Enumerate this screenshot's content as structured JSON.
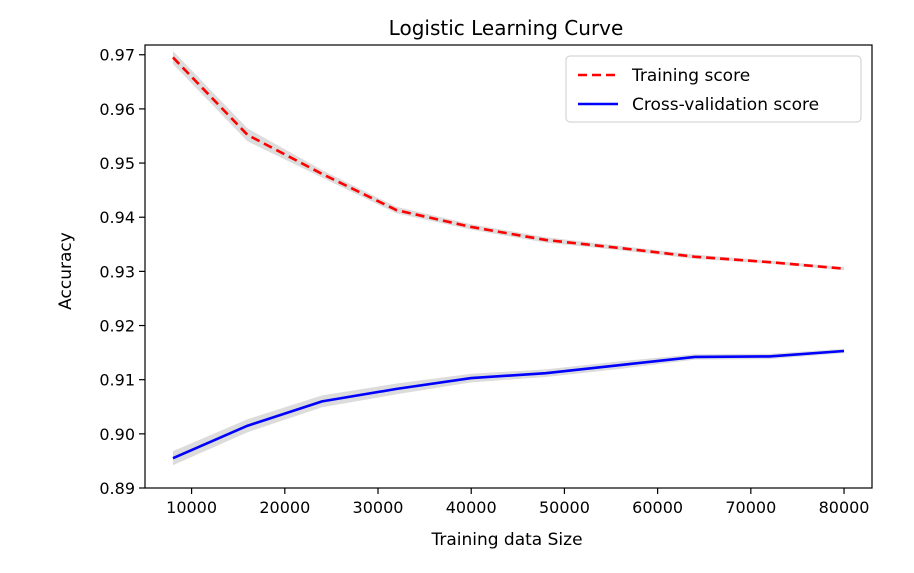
{
  "chart_data": {
    "type": "line",
    "title": "Logistic Learning Curve",
    "xlabel": "Training data Size",
    "ylabel": "Accuracy",
    "xlim": [
      5000,
      83000
    ],
    "ylim": [
      0.89,
      0.9718
    ],
    "x_ticks": [
      10000,
      20000,
      30000,
      40000,
      50000,
      60000,
      70000,
      80000
    ],
    "x_tick_labels": [
      "10000",
      "20000",
      "30000",
      "40000",
      "50000",
      "60000",
      "70000",
      "80000"
    ],
    "y_ticks": [
      0.89,
      0.9,
      0.91,
      0.92,
      0.93,
      0.94,
      0.95,
      0.96,
      0.97
    ],
    "y_tick_labels": [
      "0.89",
      "0.90",
      "0.91",
      "0.92",
      "0.93",
      "0.94",
      "0.95",
      "0.96",
      "0.97"
    ],
    "x": [
      8000,
      16000,
      24000,
      32000,
      40000,
      48000,
      56000,
      64000,
      72000,
      80000
    ],
    "series": [
      {
        "name": "Training score",
        "color": "#ff0000",
        "style": "dashed",
        "values": [
          0.9695,
          0.9552,
          0.948,
          0.9413,
          0.9382,
          0.9358,
          0.9343,
          0.9327,
          0.9317,
          0.9305
        ],
        "band": [
          0.0012,
          0.0012,
          0.0007,
          0.0006,
          0.0005,
          0.0005,
          0.0004,
          0.0004,
          0.0003,
          0.0003
        ]
      },
      {
        "name": "Cross-validation score",
        "color": "#0000ff",
        "style": "solid",
        "values": [
          0.8955,
          0.9015,
          0.906,
          0.9083,
          0.9103,
          0.9112,
          0.9127,
          0.9142,
          0.9143,
          0.9153
        ],
        "band": [
          0.0013,
          0.0012,
          0.0011,
          0.001,
          0.0008,
          0.0007,
          0.0007,
          0.0005,
          0.0005,
          0.0004
        ]
      }
    ],
    "band_color": "#bfbfbf",
    "legend": {
      "position": "upper-right",
      "entries": [
        "Training score",
        "Cross-validation score"
      ]
    },
    "grid": false
  }
}
